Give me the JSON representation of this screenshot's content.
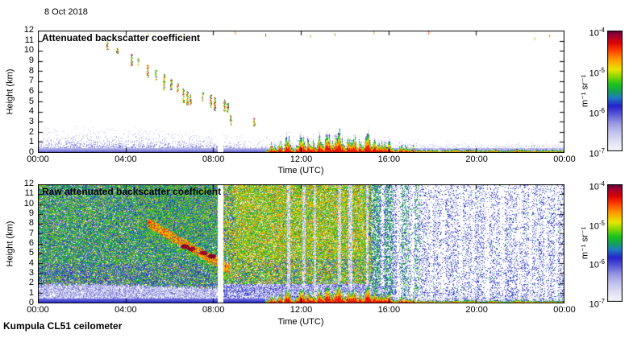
{
  "meta": {
    "date_label": "8 Oct 2018",
    "footer": "Kumpula CL51 ceilometer"
  },
  "colormap": [
    [
      0.0,
      "#f7f7fc"
    ],
    [
      0.08,
      "#e2e2f6"
    ],
    [
      0.16,
      "#c2c2ec"
    ],
    [
      0.24,
      "#9595e2"
    ],
    [
      0.32,
      "#5050d5"
    ],
    [
      0.38,
      "#2424cd"
    ],
    [
      0.45,
      "#1e7fc0"
    ],
    [
      0.5,
      "#14a055"
    ],
    [
      0.56,
      "#1ec41e"
    ],
    [
      0.63,
      "#97d800"
    ],
    [
      0.68,
      "#e8e800"
    ],
    [
      0.76,
      "#ff9d00"
    ],
    [
      0.84,
      "#ff3c00"
    ],
    [
      0.9,
      "#dc0505"
    ],
    [
      0.96,
      "#a2002f"
    ],
    [
      1.0,
      "#5c0038"
    ]
  ],
  "chart_data": {
    "type": "heatmap",
    "x": {
      "label": "Time (UTC)",
      "tick_labels": [
        "00:00",
        "04:00",
        "08:00",
        "12:00",
        "16:00",
        "20:00",
        "00:00"
      ],
      "range_hours": [
        0,
        24
      ]
    },
    "y": {
      "label": "Height (km)",
      "tick_labels": [
        "0",
        "1",
        "2",
        "3",
        "4",
        "5",
        "6",
        "7",
        "8",
        "9",
        "10",
        "11",
        "12"
      ],
      "range_km": [
        0,
        12
      ]
    },
    "colorbar": {
      "unit": "m⁻¹ sr⁻¹",
      "tick_exponents": [
        {
          "base": "10",
          "exp": "-4"
        },
        {
          "base": "10",
          "exp": "-5"
        },
        {
          "base": "10",
          "exp": "-6"
        },
        {
          "base": "10",
          "exp": "-7"
        }
      ],
      "value_range": [
        "1e-7",
        "1e-4"
      ]
    },
    "panels": [
      {
        "title": "Attenuated backscatter coefficient",
        "description": "Cleaned backscatter on white background: aerosol boundary layer below ~2 km all day, descending virga/cloud streaks 03:00-09:00 UTC from 11 km down to ~5 km, low clouds and precipitation 10:30-17:00 UTC below ~3.5 km, thin strong surface backscatter band until midnight, data gap ~08:15 UTC"
      },
      {
        "title": "Raw attenuated backscatter coefficient",
        "description": "Raw signal with full-field speckle noise: green/blue noise before 08:00, yellow/orange daytime noise 09:00-15:00, descending orange cloud streak 05:00-08:30 with dark-red cloud blobs, vertical light attenuation stripes after 11:00, sparse blue noise after 15:00, same low clouds and surface band as top panel, data gap ~08:15 UTC"
      }
    ],
    "events": {
      "noise_seed": 42,
      "data_gap_hours": [
        8.17,
        8.42
      ],
      "boundary_layer_top_profile": [
        [
          0,
          1.9
        ],
        [
          2,
          2.0
        ],
        [
          4,
          1.9
        ],
        [
          5,
          1.8
        ],
        [
          7,
          1.7
        ],
        [
          8,
          1.6
        ],
        [
          9,
          1.4
        ],
        [
          10,
          1.1
        ],
        [
          11,
          0.9
        ],
        [
          12,
          1.1
        ],
        [
          13,
          0.9
        ],
        [
          14,
          0.85
        ],
        [
          15,
          0.8
        ],
        [
          16,
          0.7
        ],
        [
          18,
          0.6
        ],
        [
          20,
          0.55
        ],
        [
          22,
          0.5
        ],
        [
          24,
          0.5
        ]
      ],
      "virga_streaks": [
        [
          3.15,
          10.9,
          0.7
        ],
        [
          3.6,
          10.3,
          0.5
        ],
        [
          4.25,
          9.7,
          1.1
        ],
        [
          4.55,
          9.3,
          0.6
        ],
        [
          5.0,
          8.6,
          1.2
        ],
        [
          5.35,
          8.1,
          0.9
        ],
        [
          5.75,
          7.7,
          1.5
        ],
        [
          6.05,
          7.3,
          1.1
        ],
        [
          6.35,
          6.9,
          0.9
        ],
        [
          6.6,
          6.3,
          1.3
        ],
        [
          6.8,
          6.0,
          1.3
        ],
        [
          6.95,
          5.8,
          1.0
        ],
        [
          7.5,
          5.9,
          0.8
        ],
        [
          7.85,
          5.7,
          1.2
        ],
        [
          8.05,
          5.45,
          1.3
        ],
        [
          8.5,
          5.2,
          1.1
        ],
        [
          8.65,
          4.9,
          0.9
        ],
        [
          8.8,
          3.7,
          0.9
        ],
        [
          9.85,
          3.4,
          0.7
        ]
      ],
      "high_specks": [
        [
          5.0,
          11.8
        ],
        [
          6.5,
          11.6
        ],
        [
          8.95,
          11.9
        ],
        [
          10.35,
          11.7
        ],
        [
          12.4,
          11.6
        ],
        [
          13.5,
          11.8
        ],
        [
          15.3,
          11.9
        ],
        [
          17.8,
          11.9
        ],
        [
          22.6,
          11.4
        ],
        [
          23.3,
          11.6
        ]
      ],
      "descent_line": {
        "from": [
          5.0,
          8.2
        ],
        "to": [
          8.7,
          3.5
        ]
      },
      "descent_blobs": [
        [
          6.7,
          5.75
        ],
        [
          7.0,
          5.5
        ],
        [
          7.55,
          5.1
        ],
        [
          7.9,
          4.8
        ]
      ],
      "low_cloud_hours": [
        10.35,
        17.2
      ],
      "surface_band_hours": [
        10.35,
        24
      ],
      "attenuation_stripes": [
        [
          11.35,
          11.5
        ],
        [
          12.05,
          12.2
        ],
        [
          12.55,
          12.65
        ],
        [
          13.65,
          13.8
        ],
        [
          14.15,
          14.3
        ],
        [
          14.95,
          15.05
        ],
        [
          15.65,
          15.75
        ],
        [
          16.35,
          16.55
        ],
        [
          17.0,
          17.15
        ],
        [
          17.85,
          18.0
        ],
        [
          18.35,
          18.55
        ],
        [
          19.15,
          19.35
        ],
        [
          19.75,
          19.9
        ],
        [
          20.35,
          20.55
        ],
        [
          21.05,
          21.25
        ],
        [
          21.85,
          22.0
        ],
        [
          22.35,
          22.5
        ],
        [
          23.05,
          23.2
        ],
        [
          23.55,
          23.7
        ]
      ],
      "green_columns": [
        [
          15.25,
          15.6
        ],
        [
          15.8,
          16.2
        ],
        [
          16.5,
          16.9
        ],
        [
          17.1,
          17.4
        ]
      ]
    }
  }
}
